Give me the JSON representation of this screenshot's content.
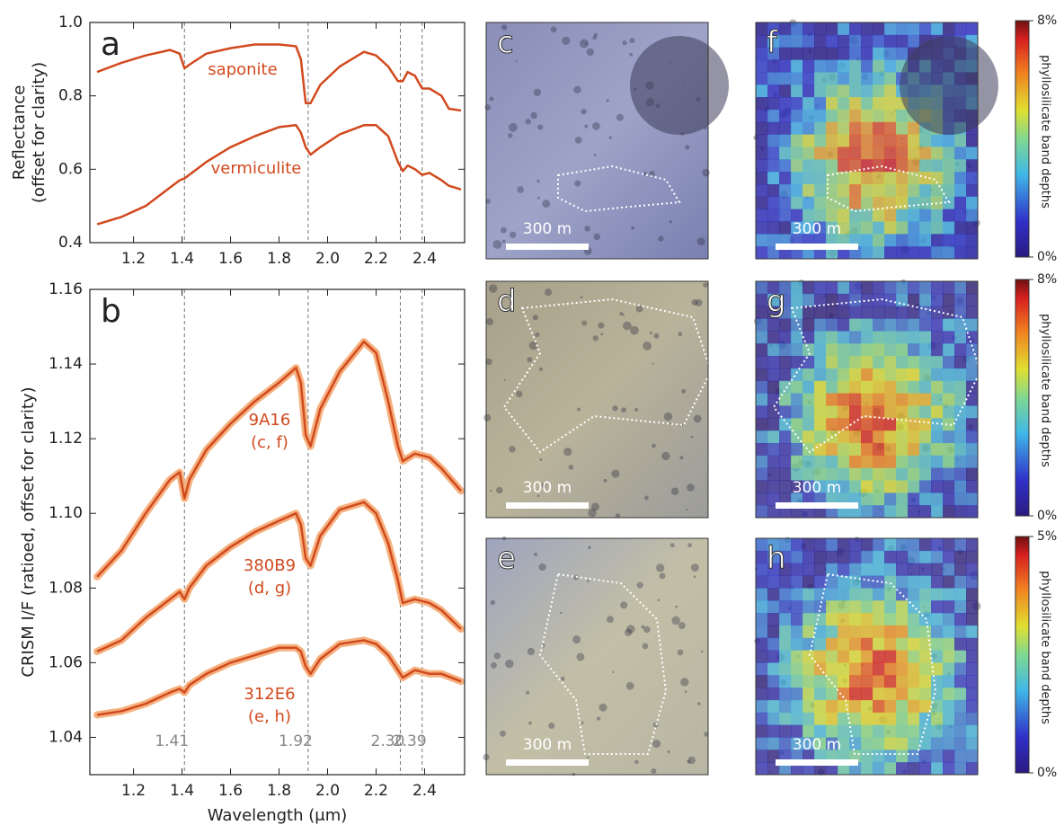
{
  "chart_data": [
    {
      "type": "line",
      "panel": "a",
      "ylabel": [
        "Reflectance",
        "(offset for clarity)"
      ],
      "xlim": [
        1.02,
        2.565
      ],
      "ylim": [
        0.4,
        1.0
      ],
      "xticks": [
        1.2,
        1.4,
        1.6,
        1.8,
        {
          "value": 2,
          "label": "2.0"
        },
        2.2,
        2.4
      ],
      "yticks": [
        0.4,
        0.6,
        0.8,
        {
          "value": 1,
          "label": "1.0"
        }
      ],
      "vlines": [
        1.41,
        1.92,
        2.3,
        2.39
      ],
      "x": [
        1.05,
        1.15,
        1.25,
        1.35,
        1.39,
        1.41,
        1.43,
        1.5,
        1.6,
        1.7,
        1.8,
        1.87,
        1.89,
        1.91,
        1.93,
        1.97,
        2.05,
        2.15,
        2.2,
        2.25,
        2.29,
        2.31,
        2.33,
        2.36,
        2.39,
        2.42,
        2.47,
        2.5,
        2.55
      ],
      "series": [
        {
          "name": "saponite",
          "color": "#d2491e",
          "values": [
            0.865,
            0.89,
            0.91,
            0.925,
            0.915,
            0.875,
            0.885,
            0.915,
            0.93,
            0.94,
            0.94,
            0.935,
            0.9,
            0.78,
            0.78,
            0.83,
            0.88,
            0.92,
            0.91,
            0.88,
            0.84,
            0.84,
            0.865,
            0.855,
            0.82,
            0.82,
            0.8,
            0.765,
            0.76
          ]
        },
        {
          "name": "vermiculite",
          "color": "#d2491e",
          "values": [
            0.45,
            0.47,
            0.5,
            0.55,
            0.57,
            0.575,
            0.585,
            0.62,
            0.66,
            0.69,
            0.715,
            0.72,
            0.7,
            0.66,
            0.64,
            0.66,
            0.695,
            0.72,
            0.72,
            0.69,
            0.62,
            0.595,
            0.61,
            0.6,
            0.585,
            0.59,
            0.57,
            0.555,
            0.545
          ]
        }
      ]
    },
    {
      "type": "line",
      "panel": "b",
      "xlabel": "Wavelength (μm)",
      "ylabel": [
        "CRISM I/F (ratioed, offset for clarity)"
      ],
      "xlim": [
        1.02,
        2.565
      ],
      "ylim": [
        1.03,
        1.16
      ],
      "xticks": [
        1.2,
        1.4,
        1.6,
        1.8,
        {
          "value": 2,
          "label": "2.0"
        },
        2.2,
        2.4
      ],
      "yticks": [
        1.04,
        1.06,
        1.08,
        {
          "value": 1.1,
          "label": "1.10"
        },
        1.12,
        1.14,
        1.16
      ],
      "vlines": [
        {
          "value": 1.41,
          "label": "1.41"
        },
        {
          "value": 1.92,
          "label": "1.92"
        },
        {
          "value": 2.3,
          "label": "2.30"
        },
        {
          "value": 2.39,
          "label": "2.39"
        }
      ],
      "x": [
        1.05,
        1.15,
        1.25,
        1.35,
        1.39,
        1.41,
        1.43,
        1.5,
        1.6,
        1.7,
        1.8,
        1.87,
        1.89,
        1.91,
        1.93,
        1.97,
        2.05,
        2.15,
        2.2,
        2.25,
        2.29,
        2.31,
        2.36,
        2.42,
        2.47,
        2.55
      ],
      "series": [
        {
          "name": "9A16",
          "subtitle": "(c, f)",
          "color": "#d2491e",
          "values": [
            1.083,
            1.09,
            1.1,
            1.109,
            1.111,
            1.104,
            1.109,
            1.117,
            1.124,
            1.13,
            1.135,
            1.139,
            1.135,
            1.121,
            1.118,
            1.128,
            1.138,
            1.146,
            1.143,
            1.13,
            1.118,
            1.114,
            1.116,
            1.115,
            1.112,
            1.106
          ]
        },
        {
          "name": "380B9",
          "subtitle": "(d, g)",
          "color": "#d2491e",
          "values": [
            1.063,
            1.066,
            1.072,
            1.077,
            1.079,
            1.077,
            1.08,
            1.086,
            1.091,
            1.095,
            1.098,
            1.1,
            1.097,
            1.088,
            1.086,
            1.094,
            1.101,
            1.103,
            1.1,
            1.092,
            1.082,
            1.076,
            1.077,
            1.076,
            1.074,
            1.069
          ]
        },
        {
          "name": "312E6",
          "subtitle": "(e, h)",
          "color": "#d2491e",
          "values": [
            1.046,
            1.047,
            1.049,
            1.052,
            1.053,
            1.052,
            1.054,
            1.057,
            1.06,
            1.062,
            1.064,
            1.064,
            1.063,
            1.059,
            1.057,
            1.061,
            1.065,
            1.066,
            1.065,
            1.062,
            1.058,
            1.056,
            1.058,
            1.057,
            1.057,
            1.055
          ]
        }
      ]
    }
  ],
  "images": {
    "panels": [
      {
        "letter": "c",
        "scale": "300 m"
      },
      {
        "letter": "f",
        "scale": "300 m"
      },
      {
        "letter": "d",
        "scale": "300 m"
      },
      {
        "letter": "g",
        "scale": "300 m"
      },
      {
        "letter": "e",
        "scale": "300 m"
      },
      {
        "letter": "h",
        "scale": "300 m"
      }
    ],
    "colorbars": [
      {
        "max": "8%",
        "min": "0%",
        "label": "phyllosilicate band depths"
      },
      {
        "max": "8%",
        "min": "0%",
        "label": "phyllosilicate band depths"
      },
      {
        "max": "5%",
        "min": "0%",
        "label": "phyllosilicate band depths"
      }
    ]
  }
}
